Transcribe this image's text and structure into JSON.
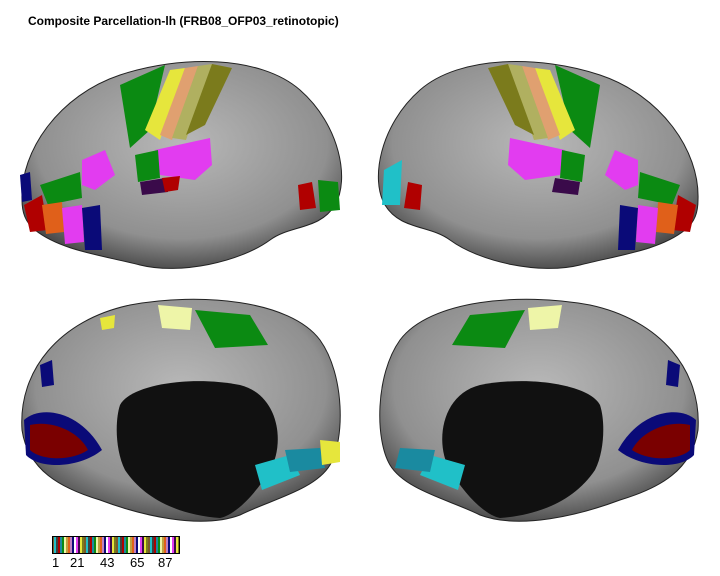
{
  "title": "Composite Parcellation-lh (FRB08_OFP03_retinotopic)",
  "views": [
    "lateral",
    "medial-flipped",
    "medial",
    "medial-posterior"
  ],
  "colorbar": {
    "ticks": [
      "1",
      "21",
      "43",
      "65",
      "87"
    ]
  },
  "colors": {
    "cortex": "#9e9e9e",
    "medial_wall": "#111111",
    "parcel_green": "#0b8a12",
    "parcel_magenta": "#e23cf0",
    "parcel_red": "#b00000",
    "parcel_navy": "#0a0a78",
    "parcel_yellow": "#e6e63c",
    "parcel_olive": "#7b7b1c",
    "parcel_orange": "#e0601a",
    "parcel_cyan": "#20c0c8",
    "parcel_lightyellow": "#eef5a8"
  }
}
